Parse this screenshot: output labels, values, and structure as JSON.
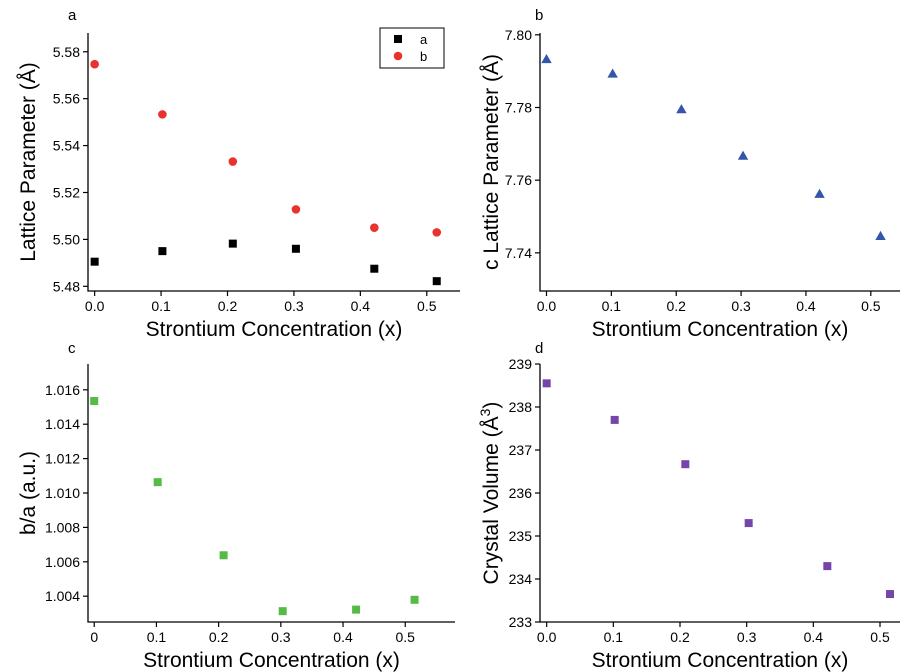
{
  "chart_data": [
    {
      "panel": "a",
      "type": "scatter",
      "xlabel": "Strontium Concentration (x)",
      "ylabel": "Lattice Parameter (Å)",
      "xlim": [
        -0.01,
        0.55
      ],
      "ylim": [
        5.478,
        5.588
      ],
      "xticks": [
        "0.0",
        "0.1",
        "0.2",
        "0.3",
        "0.4",
        "0.5"
      ],
      "yticks": [
        "5.48",
        "5.50",
        "5.52",
        "5.54",
        "5.56",
        "5.58"
      ],
      "legend": "top-right",
      "series": [
        {
          "name": "a",
          "color": "#000000",
          "marker": "square",
          "x": [
            0.0,
            0.102,
            0.208,
            0.303,
            0.421,
            0.515
          ],
          "y": [
            5.4905,
            5.495,
            5.4982,
            5.496,
            5.4875,
            5.4822
          ]
        },
        {
          "name": "b",
          "color": "#e8322e",
          "marker": "circle",
          "x": [
            0.0,
            0.102,
            0.208,
            0.303,
            0.421,
            0.515
          ],
          "y": [
            5.5747,
            5.5533,
            5.5332,
            5.5128,
            5.505,
            5.503
          ]
        }
      ]
    },
    {
      "panel": "b",
      "type": "scatter",
      "xlabel": "Strontium Concentration (x)",
      "ylabel": "c Lattice Parameter (Å)",
      "xlim": [
        -0.01,
        0.545
      ],
      "ylim": [
        7.7295,
        7.8005
      ],
      "xticks": [
        "0.0",
        "0.1",
        "0.2",
        "0.3",
        "0.4",
        "0.5"
      ],
      "yticks": [
        "7.74",
        "7.76",
        "7.78",
        "7.80"
      ],
      "series": [
        {
          "color": "#3355aa",
          "marker": "triangle",
          "x": [
            0.0,
            0.102,
            0.208,
            0.303,
            0.421,
            0.515
          ],
          "y": [
            7.7933,
            7.7893,
            7.7795,
            7.7667,
            7.7562,
            7.7446
          ]
        }
      ]
    },
    {
      "panel": "c",
      "type": "scatter",
      "xlabel": "Strontium Concentration (x)",
      "ylabel": "b/a (a.u.)",
      "xlim": [
        -0.01,
        0.58
      ],
      "ylim": [
        1.0025,
        1.0175
      ],
      "xticks": [
        "0",
        "0.1",
        "0.2",
        "0.3",
        "0.4",
        "0.5"
      ],
      "yticks": [
        "1.004",
        "1.006",
        "1.008",
        "1.010",
        "1.012",
        "1.014",
        "1.016"
      ],
      "series": [
        {
          "color": "#55bb44",
          "marker": "square",
          "x": [
            0.0,
            0.102,
            0.208,
            0.303,
            0.421,
            0.515
          ],
          "y": [
            1.01535,
            1.01063,
            1.00638,
            1.00313,
            1.00322,
            1.00379
          ]
        }
      ]
    },
    {
      "panel": "d",
      "type": "scatter",
      "xlabel": "Strontium Concentration (x)",
      "ylabel": "Crystal Volume (Å",
      "ylabel_superscript": "3",
      "ylabel_suffix": ")",
      "xlim": [
        -0.01,
        0.53
      ],
      "ylim": [
        233.0,
        239.0
      ],
      "xticks": [
        "0.0",
        "0.1",
        "0.2",
        "0.3",
        "0.4",
        "0.5"
      ],
      "yticks": [
        "233",
        "234",
        "235",
        "236",
        "237",
        "238",
        "239"
      ],
      "series": [
        {
          "color": "#7744aa",
          "marker": "square",
          "x": [
            0.0,
            0.102,
            0.208,
            0.303,
            0.421,
            0.515
          ],
          "y": [
            238.55,
            237.7,
            236.67,
            235.3,
            234.3,
            233.65
          ]
        }
      ]
    }
  ]
}
